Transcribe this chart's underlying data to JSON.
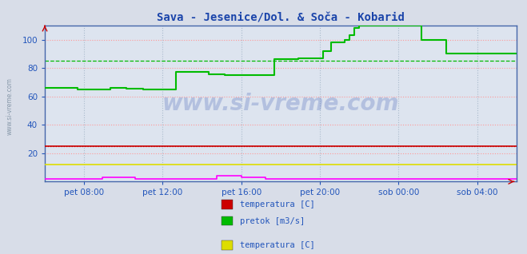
{
  "title": "Sava - Jesenice/Dol. & Soča - Kobarid",
  "title_color": "#1a44aa",
  "background_color": "#d8dde8",
  "plot_bg_color": "#dde4ef",
  "grid_color_h_red": "#ff9999",
  "grid_color_h_green": "#00bb00",
  "grid_color_v": "#aabbcc",
  "ylabel_color": "#2255bb",
  "xlabel_color": "#2255bb",
  "xlim": [
    0,
    288
  ],
  "ylim": [
    0,
    110
  ],
  "yticks": [
    20,
    40,
    60,
    80,
    100
  ],
  "xtick_labels": [
    "pet 08:00",
    "pet 12:00",
    "pet 16:00",
    "pet 20:00",
    "sob 00:00",
    "sob 04:00"
  ],
  "xtick_positions": [
    24,
    72,
    120,
    168,
    216,
    264
  ],
  "watermark": "www.si-vreme.com",
  "legend_items": [
    {
      "color": "#cc0000",
      "label": "temperatura [C]"
    },
    {
      "color": "#00bb00",
      "label": "pretok [m3/s]"
    },
    {
      "color": "#dddd00",
      "label": "temperatura [C]"
    },
    {
      "color": "#ff00ff",
      "label": "pretok [m3/s]"
    }
  ],
  "series": {
    "sava_temp": {
      "color": "#cc0000",
      "points": [
        [
          0,
          25
        ],
        [
          288,
          25
        ]
      ]
    },
    "sava_pretok": {
      "color": "#00bb00",
      "points": [
        [
          0,
          66
        ],
        [
          10,
          66
        ],
        [
          20,
          65
        ],
        [
          30,
          65
        ],
        [
          40,
          66
        ],
        [
          50,
          65.5
        ],
        [
          60,
          65
        ],
        [
          70,
          65
        ],
        [
          80,
          77
        ],
        [
          90,
          77
        ],
        [
          100,
          75.5
        ],
        [
          110,
          75
        ],
        [
          120,
          75
        ],
        [
          130,
          75
        ],
        [
          135,
          75
        ],
        [
          140,
          86
        ],
        [
          150,
          86
        ],
        [
          155,
          87
        ],
        [
          160,
          87
        ],
        [
          165,
          87
        ],
        [
          170,
          92
        ],
        [
          175,
          98
        ],
        [
          180,
          98
        ],
        [
          183,
          100
        ],
        [
          186,
          103
        ],
        [
          189,
          108
        ],
        [
          192,
          110
        ],
        [
          200,
          110
        ],
        [
          210,
          110
        ],
        [
          220,
          110
        ],
        [
          225,
          110
        ],
        [
          230,
          100
        ],
        [
          235,
          100
        ],
        [
          240,
          100
        ],
        [
          245,
          90
        ],
        [
          250,
          90
        ],
        [
          260,
          90
        ],
        [
          270,
          90
        ],
        [
          280,
          90
        ],
        [
          288,
          90
        ]
      ]
    },
    "soca_temp": {
      "color": "#dddd00",
      "points": [
        [
          0,
          12
        ],
        [
          288,
          12
        ]
      ]
    },
    "soca_pretok": {
      "color": "#ff00ff",
      "points": [
        [
          0,
          2
        ],
        [
          30,
          2
        ],
        [
          35,
          3
        ],
        [
          50,
          3
        ],
        [
          55,
          2
        ],
        [
          70,
          2
        ],
        [
          100,
          2
        ],
        [
          105,
          4
        ],
        [
          115,
          4
        ],
        [
          120,
          3
        ],
        [
          130,
          3
        ],
        [
          135,
          2
        ],
        [
          288,
          2
        ]
      ]
    }
  },
  "hline_green": 85,
  "hline_red": 25,
  "spine_color": "#4466aa",
  "tick_color": "#2255bb"
}
